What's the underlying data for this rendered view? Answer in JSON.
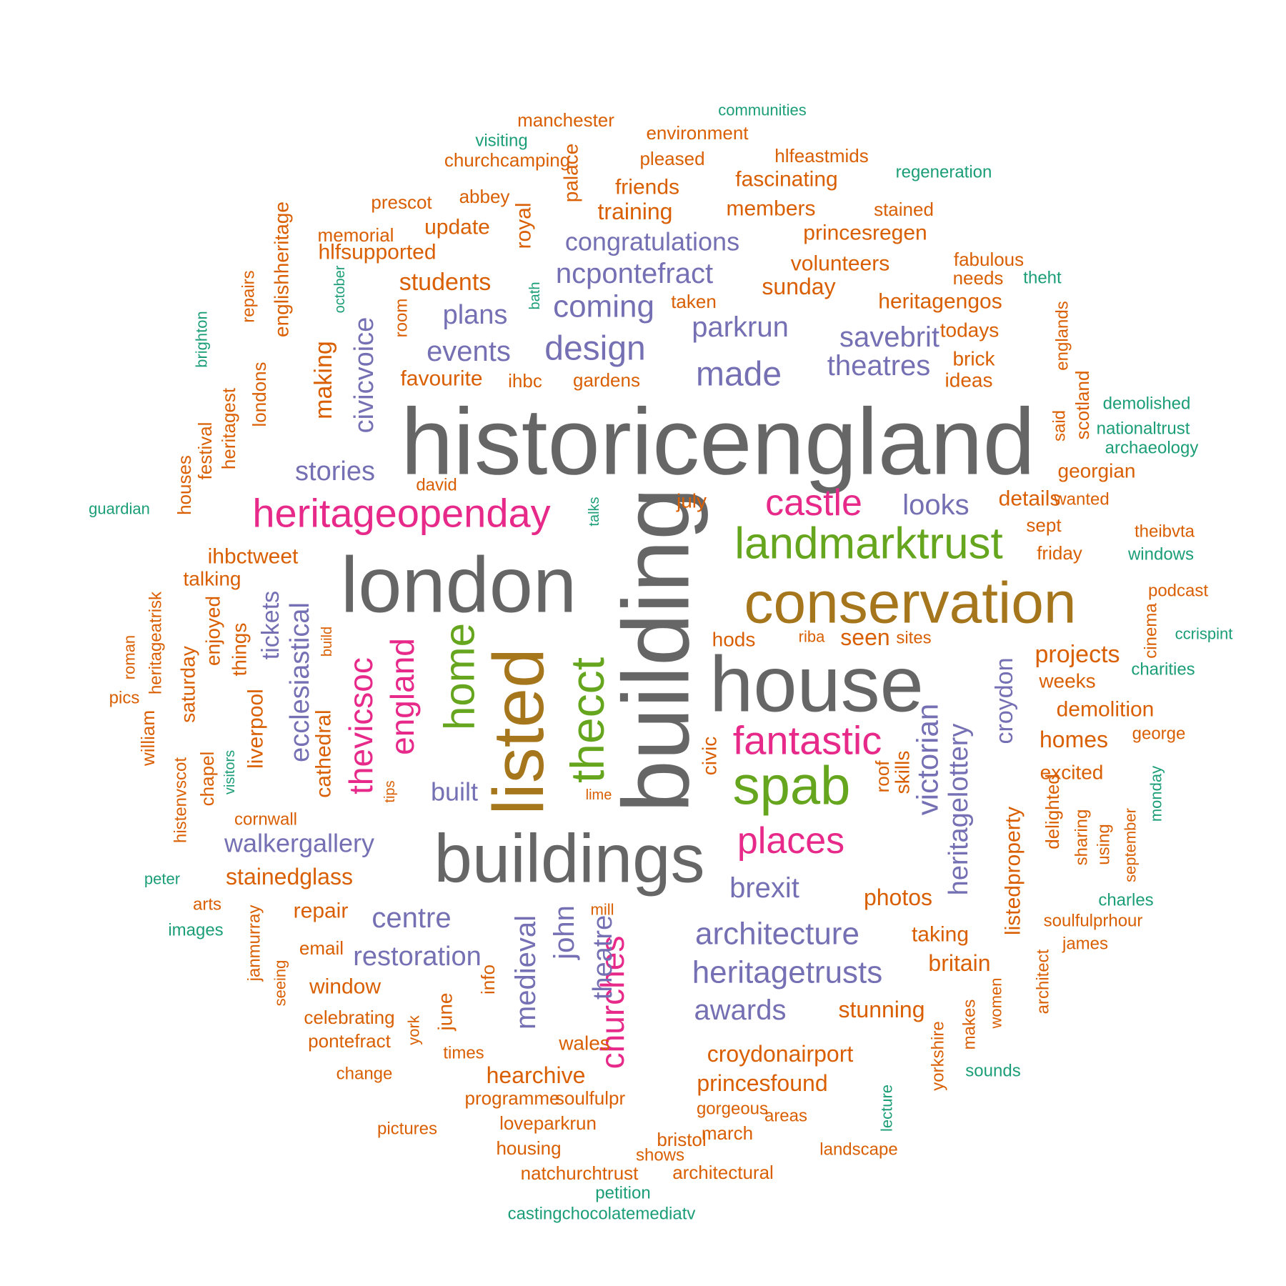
{
  "palette": {
    "gray": "#666666",
    "gold": "#A6761D",
    "olive": "#66A61E",
    "magenta": "#E7298A",
    "purple": "#7570B3",
    "orange": "#D95F02",
    "teal": "#1B9E77"
  },
  "words": [
    {
      "text": "historicengland",
      "color": "gray"
    },
    {
      "text": "building",
      "color": "gray"
    },
    {
      "text": "london",
      "color": "gray"
    },
    {
      "text": "house",
      "color": "gray"
    },
    {
      "text": "buildings",
      "color": "gray"
    },
    {
      "text": "listed",
      "color": "gold"
    },
    {
      "text": "conservation",
      "color": "gold"
    },
    {
      "text": "landmarktrust",
      "color": "olive"
    },
    {
      "text": "spab",
      "color": "olive"
    },
    {
      "text": "thecct",
      "color": "olive"
    },
    {
      "text": "home",
      "color": "olive"
    },
    {
      "text": "heritageopenday",
      "color": "magenta"
    },
    {
      "text": "castle",
      "color": "magenta"
    },
    {
      "text": "fantastic",
      "color": "magenta"
    },
    {
      "text": "places",
      "color": "magenta"
    },
    {
      "text": "churches",
      "color": "magenta"
    },
    {
      "text": "thevicsoc",
      "color": "magenta"
    },
    {
      "text": "england",
      "color": "magenta"
    },
    {
      "text": "design",
      "color": "purple"
    },
    {
      "text": "made",
      "color": "purple"
    },
    {
      "text": "theatres",
      "color": "purple"
    },
    {
      "text": "savebrit",
      "color": "purple"
    },
    {
      "text": "parkrun",
      "color": "purple"
    },
    {
      "text": "coming",
      "color": "purple"
    },
    {
      "text": "plans",
      "color": "purple"
    },
    {
      "text": "events",
      "color": "purple"
    },
    {
      "text": "ncpontefract",
      "color": "purple"
    },
    {
      "text": "congratulations",
      "color": "purple"
    },
    {
      "text": "stories",
      "color": "purple"
    },
    {
      "text": "looks",
      "color": "purple"
    },
    {
      "text": "civicvoice",
      "color": "purple"
    },
    {
      "text": "ecclesiastical",
      "color": "purple"
    },
    {
      "text": "tickets",
      "color": "purple"
    },
    {
      "text": "victorian",
      "color": "purple"
    },
    {
      "text": "heritagelottery",
      "color": "purple"
    },
    {
      "text": "croydon",
      "color": "purple"
    },
    {
      "text": "brexit",
      "color": "purple"
    },
    {
      "text": "architecture",
      "color": "purple"
    },
    {
      "text": "heritagetrusts",
      "color": "purple"
    },
    {
      "text": "awards",
      "color": "purple"
    },
    {
      "text": "centre",
      "color": "purple"
    },
    {
      "text": "restoration",
      "color": "purple"
    },
    {
      "text": "walkergallery",
      "color": "purple"
    },
    {
      "text": "built",
      "color": "purple"
    },
    {
      "text": "medieval",
      "color": "purple"
    },
    {
      "text": "john",
      "color": "purple"
    },
    {
      "text": "theatre",
      "color": "purple"
    },
    {
      "text": "manchester",
      "color": "orange"
    },
    {
      "text": "environment",
      "color": "orange"
    },
    {
      "text": "churchcamping",
      "color": "orange"
    },
    {
      "text": "pleased",
      "color": "orange"
    },
    {
      "text": "hlfeastmids",
      "color": "orange"
    },
    {
      "text": "fascinating",
      "color": "orange"
    },
    {
      "text": "friends",
      "color": "orange"
    },
    {
      "text": "palace",
      "color": "orange"
    },
    {
      "text": "prescot",
      "color": "orange"
    },
    {
      "text": "abbey",
      "color": "orange"
    },
    {
      "text": "training",
      "color": "orange"
    },
    {
      "text": "members",
      "color": "orange"
    },
    {
      "text": "stained",
      "color": "orange"
    },
    {
      "text": "royal",
      "color": "orange"
    },
    {
      "text": "update",
      "color": "orange"
    },
    {
      "text": "memorial",
      "color": "orange"
    },
    {
      "text": "princesregen",
      "color": "orange"
    },
    {
      "text": "hlfsupported",
      "color": "orange"
    },
    {
      "text": "volunteers",
      "color": "orange"
    },
    {
      "text": "fabulous",
      "color": "orange"
    },
    {
      "text": "englishheritage",
      "color": "orange"
    },
    {
      "text": "students",
      "color": "orange"
    },
    {
      "text": "needs",
      "color": "orange"
    },
    {
      "text": "sunday",
      "color": "orange"
    },
    {
      "text": "taken",
      "color": "orange"
    },
    {
      "text": "heritagengos",
      "color": "orange"
    },
    {
      "text": "repairs",
      "color": "orange"
    },
    {
      "text": "room",
      "color": "orange"
    },
    {
      "text": "todays",
      "color": "orange"
    },
    {
      "text": "brick",
      "color": "orange"
    },
    {
      "text": "englands",
      "color": "orange"
    },
    {
      "text": "making",
      "color": "orange"
    },
    {
      "text": "favourite",
      "color": "orange"
    },
    {
      "text": "ihbc",
      "color": "orange"
    },
    {
      "text": "gardens",
      "color": "orange"
    },
    {
      "text": "ideas",
      "color": "orange"
    },
    {
      "text": "londons",
      "color": "orange"
    },
    {
      "text": "heritagest",
      "color": "orange"
    },
    {
      "text": "festival",
      "color": "orange"
    },
    {
      "text": "scotland",
      "color": "orange"
    },
    {
      "text": "said",
      "color": "orange"
    },
    {
      "text": "david",
      "color": "orange"
    },
    {
      "text": "georgian",
      "color": "orange"
    },
    {
      "text": "houses",
      "color": "orange"
    },
    {
      "text": "july",
      "color": "orange"
    },
    {
      "text": "details",
      "color": "orange"
    },
    {
      "text": "wanted",
      "color": "orange"
    },
    {
      "text": "sept",
      "color": "orange"
    },
    {
      "text": "theibvta",
      "color": "orange"
    },
    {
      "text": "ihbctweet",
      "color": "orange"
    },
    {
      "text": "friday",
      "color": "orange"
    },
    {
      "text": "talking",
      "color": "orange"
    },
    {
      "text": "heritageatrisk",
      "color": "orange"
    },
    {
      "text": "podcast",
      "color": "orange"
    },
    {
      "text": "things",
      "color": "orange"
    },
    {
      "text": "enjoyed",
      "color": "orange"
    },
    {
      "text": "build",
      "color": "orange"
    },
    {
      "text": "riba",
      "color": "orange"
    },
    {
      "text": "hods",
      "color": "orange"
    },
    {
      "text": "seen",
      "color": "orange"
    },
    {
      "text": "sites",
      "color": "orange"
    },
    {
      "text": "cinema",
      "color": "orange"
    },
    {
      "text": "projects",
      "color": "orange"
    },
    {
      "text": "roman",
      "color": "orange"
    },
    {
      "text": "saturday",
      "color": "orange"
    },
    {
      "text": "weeks",
      "color": "orange"
    },
    {
      "text": "pics",
      "color": "orange"
    },
    {
      "text": "liverpool",
      "color": "orange"
    },
    {
      "text": "cathedral",
      "color": "orange"
    },
    {
      "text": "demolition",
      "color": "orange"
    },
    {
      "text": "william",
      "color": "orange"
    },
    {
      "text": "homes",
      "color": "orange"
    },
    {
      "text": "george",
      "color": "orange"
    },
    {
      "text": "civic",
      "color": "orange"
    },
    {
      "text": "roof",
      "color": "orange"
    },
    {
      "text": "skills",
      "color": "orange"
    },
    {
      "text": "excited",
      "color": "orange"
    },
    {
      "text": "histenvscot",
      "color": "orange"
    },
    {
      "text": "chapel",
      "color": "orange"
    },
    {
      "text": "tips",
      "color": "orange"
    },
    {
      "text": "lime",
      "color": "orange"
    },
    {
      "text": "cornwall",
      "color": "orange"
    },
    {
      "text": "delighted",
      "color": "orange"
    },
    {
      "text": "september",
      "color": "orange"
    },
    {
      "text": "using",
      "color": "orange"
    },
    {
      "text": "sharing",
      "color": "orange"
    },
    {
      "text": "stainedglass",
      "color": "orange"
    },
    {
      "text": "listedproperty",
      "color": "orange"
    },
    {
      "text": "photos",
      "color": "orange"
    },
    {
      "text": "arts",
      "color": "orange"
    },
    {
      "text": "mill",
      "color": "orange"
    },
    {
      "text": "repair",
      "color": "orange"
    },
    {
      "text": "soulfulprhour",
      "color": "orange"
    },
    {
      "text": "janmurray",
      "color": "orange"
    },
    {
      "text": "email",
      "color": "orange"
    },
    {
      "text": "taking",
      "color": "orange"
    },
    {
      "text": "james",
      "color": "orange"
    },
    {
      "text": "britain",
      "color": "orange"
    },
    {
      "text": "architect",
      "color": "orange"
    },
    {
      "text": "window",
      "color": "orange"
    },
    {
      "text": "info",
      "color": "orange"
    },
    {
      "text": "seeing",
      "color": "orange"
    },
    {
      "text": "june",
      "color": "orange"
    },
    {
      "text": "stunning",
      "color": "orange"
    },
    {
      "text": "celebrating",
      "color": "orange"
    },
    {
      "text": "women",
      "color": "orange"
    },
    {
      "text": "makes",
      "color": "orange"
    },
    {
      "text": "york",
      "color": "orange"
    },
    {
      "text": "pontefract",
      "color": "orange"
    },
    {
      "text": "wales",
      "color": "orange"
    },
    {
      "text": "times",
      "color": "orange"
    },
    {
      "text": "croydonairport",
      "color": "orange"
    },
    {
      "text": "yorkshire",
      "color": "orange"
    },
    {
      "text": "change",
      "color": "orange"
    },
    {
      "text": "hearchive",
      "color": "orange"
    },
    {
      "text": "princesfound",
      "color": "orange"
    },
    {
      "text": "programme",
      "color": "orange"
    },
    {
      "text": "soulfulpr",
      "color": "orange"
    },
    {
      "text": "gorgeous",
      "color": "orange"
    },
    {
      "text": "areas",
      "color": "orange"
    },
    {
      "text": "pictures",
      "color": "orange"
    },
    {
      "text": "loveparkrun",
      "color": "orange"
    },
    {
      "text": "march",
      "color": "orange"
    },
    {
      "text": "bristol",
      "color": "orange"
    },
    {
      "text": "housing",
      "color": "orange"
    },
    {
      "text": "landscape",
      "color": "orange"
    },
    {
      "text": "shows",
      "color": "orange"
    },
    {
      "text": "natchurchtrust",
      "color": "orange"
    },
    {
      "text": "architectural",
      "color": "orange"
    },
    {
      "text": "communities",
      "color": "teal"
    },
    {
      "text": "visiting",
      "color": "teal"
    },
    {
      "text": "regeneration",
      "color": "teal"
    },
    {
      "text": "theht",
      "color": "teal"
    },
    {
      "text": "october",
      "color": "teal"
    },
    {
      "text": "bath",
      "color": "teal"
    },
    {
      "text": "brighton",
      "color": "teal"
    },
    {
      "text": "demolished",
      "color": "teal"
    },
    {
      "text": "nationaltrust",
      "color": "teal"
    },
    {
      "text": "archaeology",
      "color": "teal"
    },
    {
      "text": "guardian",
      "color": "teal"
    },
    {
      "text": "talks",
      "color": "teal"
    },
    {
      "text": "windows",
      "color": "teal"
    },
    {
      "text": "ccrispint",
      "color": "teal"
    },
    {
      "text": "charities",
      "color": "teal"
    },
    {
      "text": "visitors",
      "color": "teal"
    },
    {
      "text": "monday",
      "color": "teal"
    },
    {
      "text": "peter",
      "color": "teal"
    },
    {
      "text": "images",
      "color": "teal"
    },
    {
      "text": "charles",
      "color": "teal"
    },
    {
      "text": "lecture",
      "color": "teal"
    },
    {
      "text": "sounds",
      "color": "teal"
    },
    {
      "text": "petition",
      "color": "teal"
    },
    {
      "text": "castingchocolatemediatv",
      "color": "teal"
    }
  ]
}
